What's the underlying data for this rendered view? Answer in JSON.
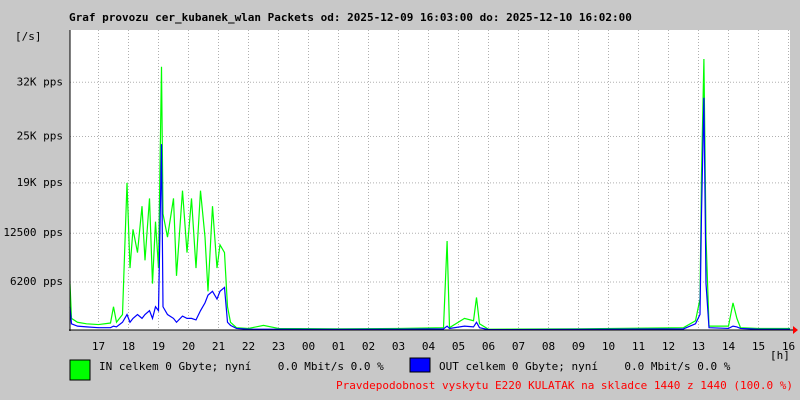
{
  "chart_data": {
    "type": "line",
    "title": "Graf provozu cer_kubanek_wlan Packets od: 2025-12-09 16:03:00 do: 2025-12-10 16:02:00",
    "y_unit": "[/s]",
    "x_unit": "[h]",
    "footer": "Pravdepodobnost vyskytu E220 KULATAK na skladce 1440 z 1440 (100.0 %)",
    "grid": true,
    "xlim": [
      16.05,
      40.05
    ],
    "ylim": [
      0,
      38750
    ],
    "xticks": [
      17,
      18,
      19,
      20,
      21,
      22,
      23,
      {
        "value": 24,
        "label": "00"
      },
      {
        "value": 25,
        "label": "01"
      },
      {
        "value": 26,
        "label": "02"
      },
      {
        "value": 27,
        "label": "03"
      },
      {
        "value": 28,
        "label": "04"
      },
      {
        "value": 29,
        "label": "05"
      },
      {
        "value": 30,
        "label": "06"
      },
      {
        "value": 31,
        "label": "07"
      },
      {
        "value": 32,
        "label": "08"
      },
      {
        "value": 33,
        "label": "09"
      },
      {
        "value": 34,
        "label": "10"
      },
      {
        "value": 35,
        "label": "11"
      },
      {
        "value": 36,
        "label": "12"
      },
      {
        "value": 37,
        "label": "13"
      },
      {
        "value": 38,
        "label": "14"
      },
      {
        "value": 39,
        "label": "15"
      },
      {
        "value": 40,
        "label": "16"
      }
    ],
    "yticks": [
      {
        "value": 6200,
        "label": "6200 pps"
      },
      {
        "value": 12500,
        "label": "12500 pps"
      },
      {
        "value": 19000,
        "label": "19K pps"
      },
      {
        "value": 25000,
        "label": "25K pps"
      },
      {
        "value": 32000,
        "label": "32K pps"
      }
    ],
    "x": [
      16.05,
      16.1,
      16.3,
      16.6,
      17.0,
      17.4,
      17.5,
      17.6,
      17.8,
      17.95,
      18.05,
      18.15,
      18.3,
      18.45,
      18.55,
      18.7,
      18.8,
      18.9,
      19.0,
      19.1,
      19.15,
      19.3,
      19.5,
      19.6,
      19.8,
      19.95,
      20.1,
      20.25,
      20.4,
      20.55,
      20.65,
      20.8,
      20.95,
      21.05,
      21.2,
      21.3,
      21.4,
      21.6,
      22.0,
      22.5,
      23.0,
      25.0,
      27.0,
      28.5,
      28.62,
      28.7,
      29.2,
      29.5,
      29.6,
      29.7,
      30.0,
      33.0,
      36.5,
      36.9,
      37.05,
      37.1,
      37.18,
      37.25,
      37.35,
      38.0,
      38.15,
      38.28,
      38.4,
      39.0,
      40.05
    ],
    "series": [
      {
        "name": "IN celkem 0 Gbyte; nyní    0.0 Mbit/s 0.0 %",
        "color": "#00ff00",
        "values": [
          6000,
          1500,
          1000,
          800,
          700,
          900,
          3000,
          1000,
          2000,
          19000,
          8000,
          13000,
          10000,
          16000,
          9000,
          17000,
          6000,
          14000,
          8000,
          34000,
          15000,
          12000,
          17000,
          7000,
          18000,
          10000,
          17000,
          8000,
          18000,
          12000,
          5000,
          16000,
          8000,
          11000,
          10000,
          3000,
          1000,
          300,
          200,
          600,
          200,
          150,
          200,
          300,
          11500,
          300,
          1500,
          1200,
          4200,
          800,
          100,
          150,
          300,
          1200,
          4000,
          20000,
          35000,
          12000,
          500,
          500,
          3500,
          1500,
          300,
          200,
          200
        ]
      },
      {
        "name": "OUT celkem 0 Gbyte; nyní    0.0 Mbit/s 0.0 %",
        "color": "#0000ff",
        "values": [
          3000,
          800,
          500,
          400,
          300,
          300,
          500,
          400,
          1000,
          2000,
          1000,
          1500,
          2000,
          1500,
          2000,
          2500,
          1500,
          3000,
          2500,
          24000,
          3000,
          2000,
          1500,
          1000,
          1800,
          1500,
          1500,
          1300,
          2500,
          3500,
          4500,
          5000,
          4000,
          5000,
          5500,
          1000,
          600,
          200,
          100,
          100,
          100,
          80,
          100,
          150,
          500,
          200,
          500,
          400,
          1000,
          300,
          50,
          80,
          150,
          800,
          2000,
          15000,
          30000,
          6000,
          300,
          200,
          500,
          400,
          200,
          100,
          100
        ]
      }
    ]
  }
}
